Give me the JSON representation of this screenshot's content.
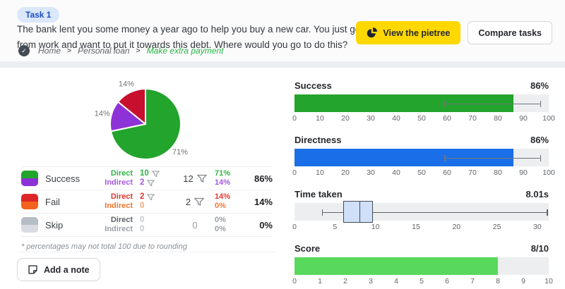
{
  "header": {
    "badge": "Task 1",
    "description": "The bank lent you some money a year ago to help you buy a new car. You just got a bonus from work and want to put it towards this debt. Where would you go to do this?",
    "buttons": {
      "view_pietree": "View the pietree",
      "compare_tasks": "Compare tasks"
    },
    "breadcrumb": {
      "items": [
        "Home",
        "Personal loan",
        "Make extra payment"
      ],
      "separator": ">"
    }
  },
  "icons": {
    "view_pietree_button": "pie-chart-icon",
    "breadcrumb_status": "check-circle-icon",
    "table_filters": "funnel-filter-icon",
    "add_note_button": "note-icon"
  },
  "colors": {
    "accent_yellow": "#ffd800",
    "success_green": "#23a42d",
    "indirect_purple": "#8d32d7",
    "fail_red": "#c8102e",
    "fail_orange": "#f4631e",
    "skip_gray": "#b7bdc5",
    "directness_blue": "#1a6fe8",
    "score_green": "#58d95b",
    "track_gray": "#eceef0",
    "badge_bg": "#dbe7fb",
    "badge_text": "#1a4fc4",
    "breadcrumb_current_green": "#28b446"
  },
  "results_table": {
    "rows": [
      {
        "name": "Success",
        "direct_label": "Direct",
        "indirect_label": "Indirect",
        "direct_value": "10",
        "indirect_value": "2",
        "total": "12",
        "direct_pct": "71%",
        "indirect_pct": "14%",
        "total_pct": "86%"
      },
      {
        "name": "Fail",
        "direct_label": "Direct",
        "indirect_label": "Indirect",
        "direct_value": "2",
        "indirect_value": "0",
        "total": "2",
        "direct_pct": "14%",
        "indirect_pct": "0%",
        "total_pct": "14%"
      },
      {
        "name": "Skip",
        "direct_label": "Direct",
        "indirect_label": "Indirect",
        "direct_value": "0",
        "indirect_value": "0",
        "total": "0",
        "direct_pct": "0%",
        "indirect_pct": "0%",
        "total_pct": "0%"
      }
    ],
    "footnote": "* percentages may not total 100 due to rounding"
  },
  "notes": {
    "add_note_label": "Add a note"
  },
  "chart_data": [
    {
      "type": "pie",
      "slices": [
        {
          "label": "71%",
          "value": 71,
          "color": "#23a42d",
          "name": "success-direct"
        },
        {
          "label": "14%",
          "value": 14,
          "color": "#8d32d7",
          "name": "success-indirect"
        },
        {
          "label": "14%",
          "value": 14,
          "color": "#c8102e",
          "name": "fail-direct"
        }
      ],
      "start_angle": 0,
      "direction": "clockwise",
      "label_color": "#757575"
    },
    {
      "type": "bar",
      "title": "Success",
      "value": 86,
      "value_label": "86%",
      "error_range": [
        59,
        97
      ],
      "xlim": [
        0,
        100
      ],
      "ticks": [
        0,
        10,
        20,
        30,
        40,
        50,
        60,
        70,
        80,
        90,
        100
      ],
      "color": "#23a42d"
    },
    {
      "type": "bar",
      "title": "Directness",
      "value": 86,
      "value_label": "86%",
      "error_range": [
        59,
        97
      ],
      "xlim": [
        0,
        100
      ],
      "ticks": [
        0,
        10,
        20,
        30,
        40,
        50,
        60,
        70,
        80,
        90,
        100
      ],
      "color": "#1a6fe8"
    },
    {
      "type": "boxplot",
      "title": "Time taken",
      "value_label": "8.01s",
      "min": 3.4,
      "q1": 6,
      "median": 8,
      "q3": 9.7,
      "max": 31.3,
      "xlim": [
        0,
        31.4
      ],
      "ticks": [
        0,
        5,
        10,
        15,
        20,
        25,
        30
      ],
      "box_fill": "#cfe0f8",
      "box_border": "#454b52"
    },
    {
      "type": "bar",
      "title": "Score",
      "value": 8,
      "value_label": "8/10",
      "xlim": [
        0,
        10
      ],
      "ticks": [
        0,
        1,
        2,
        3,
        4,
        5,
        6,
        7,
        8,
        9,
        10
      ],
      "color": "#58d95b"
    }
  ]
}
